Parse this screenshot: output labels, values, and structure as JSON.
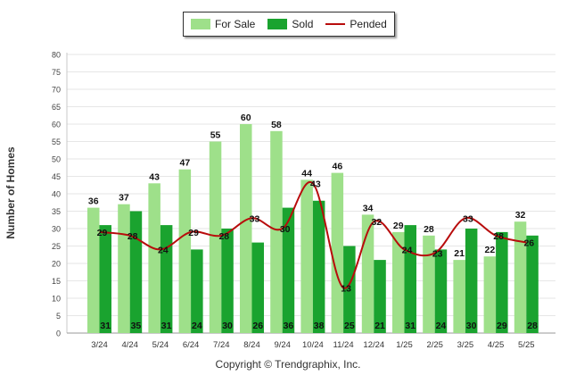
{
  "chart_data": {
    "type": "bar",
    "ylabel": "Number of Homes",
    "xlabel": "",
    "ylim": [
      0,
      80
    ],
    "yticks": [
      0,
      5,
      10,
      15,
      20,
      25,
      30,
      35,
      40,
      45,
      50,
      55,
      60,
      65,
      70,
      75,
      80
    ],
    "grid": true,
    "legend_position": "top-center",
    "categories": [
      "3/24",
      "4/24",
      "5/24",
      "6/24",
      "7/24",
      "8/24",
      "9/24",
      "10/24",
      "11/24",
      "12/24",
      "1/25",
      "2/25",
      "3/25",
      "4/25",
      "5/25"
    ],
    "series": [
      {
        "name": "For Sale",
        "kind": "bar",
        "color": "#9ee08a",
        "values": [
          36,
          37,
          43,
          47,
          55,
          60,
          58,
          44,
          46,
          34,
          29,
          28,
          21,
          22,
          32
        ]
      },
      {
        "name": "Sold",
        "kind": "bar",
        "color": "#1aa32f",
        "values": [
          31,
          35,
          31,
          24,
          30,
          26,
          36,
          38,
          25,
          21,
          31,
          24,
          30,
          29,
          28
        ]
      },
      {
        "name": "Pended",
        "kind": "line",
        "color": "#b80c0c",
        "values": [
          29,
          28,
          24,
          29,
          28,
          33,
          30,
          43,
          13,
          32,
          24,
          23,
          33,
          28,
          26
        ]
      }
    ],
    "copyright": "Copyright © Trendgraphix, Inc."
  }
}
